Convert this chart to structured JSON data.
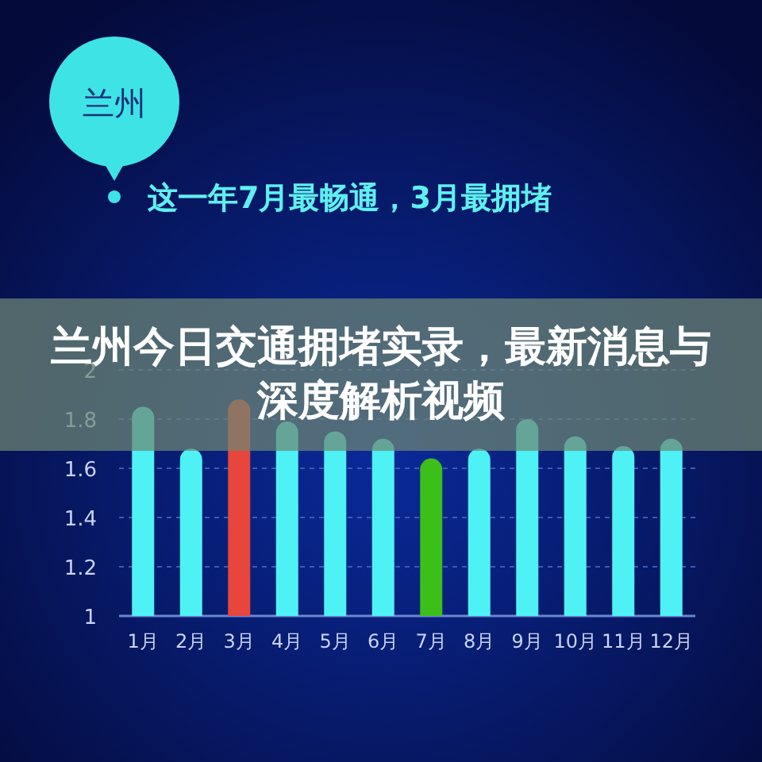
{
  "chart_data": {
    "type": "bar",
    "title": "兰州今日交通拥堵实录，最新消息与深度解析视频",
    "subtitle": "这一年7月最畅通，3月最拥堵",
    "annotations": [
      "兰州"
    ],
    "categories": [
      "1月",
      "2月",
      "3月",
      "4月",
      "5月",
      "6月",
      "7月",
      "8月",
      "9月",
      "10月",
      "11月",
      "12月"
    ],
    "values": [
      1.85,
      1.68,
      1.88,
      1.79,
      1.75,
      1.72,
      1.64,
      1.68,
      1.8,
      1.73,
      1.69,
      1.72
    ],
    "colors": [
      "#4ef2f5",
      "#4ef2f5",
      "#e8453c",
      "#4ef2f5",
      "#4ef2f5",
      "#4ef2f5",
      "#3dbf1a",
      "#4ef2f5",
      "#4ef2f5",
      "#4ef2f5",
      "#4ef2f5",
      "#4ef2f5"
    ],
    "ylim": [
      1,
      2
    ],
    "yticks": [
      1,
      1.2,
      1.4,
      1.6,
      1.8,
      2
    ],
    "grid": "y"
  }
}
